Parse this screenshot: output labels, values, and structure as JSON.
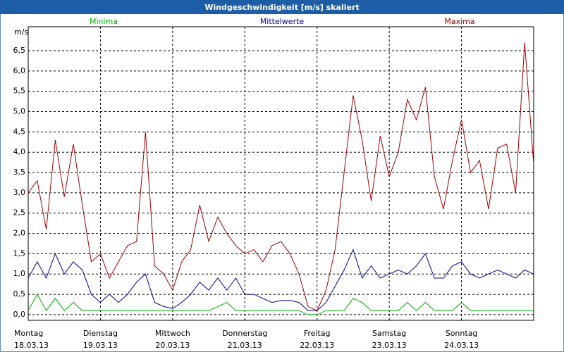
{
  "chart_data": {
    "type": "line",
    "title": "Windgeschwindigkeit [m/s] skaliert",
    "y_label": "m/s",
    "xlim": [
      0,
      7
    ],
    "ylim": [
      -0.14,
      7.09
    ],
    "xticks": [
      {
        "value": 0,
        "label": "Montag",
        "date": "18.03.13"
      },
      {
        "value": 1,
        "label": "Dienstag",
        "date": "19.03.13"
      },
      {
        "value": 2,
        "label": "Mittwoch",
        "date": "20.03.13"
      },
      {
        "value": 3,
        "label": "Donnerstag",
        "date": "21.03.13"
      },
      {
        "value": 4,
        "label": "Freitag",
        "date": "22.03.13"
      },
      {
        "value": 5,
        "label": "Samstag",
        "date": "23.03.13"
      },
      {
        "value": 6,
        "label": "Sonntag",
        "date": "24.03.13"
      }
    ],
    "yticks": [
      {
        "value": 0,
        "label": "0,0"
      },
      {
        "value": 0.5,
        "label": "0,5"
      },
      {
        "value": 1,
        "label": "1,0"
      },
      {
        "value": 1.5,
        "label": "1,5"
      },
      {
        "value": 2,
        "label": "2,0"
      },
      {
        "value": 2.5,
        "label": "2,5"
      },
      {
        "value": 3,
        "label": "3,0"
      },
      {
        "value": 3.5,
        "label": "3,5"
      },
      {
        "value": 4,
        "label": "4,0"
      },
      {
        "value": 4.5,
        "label": "4,5"
      },
      {
        "value": 5,
        "label": "5,0"
      },
      {
        "value": 5.5,
        "label": "5,5"
      },
      {
        "value": 6,
        "label": "6,0"
      },
      {
        "value": 6.5,
        "label": "6,5"
      }
    ],
    "grid": true,
    "x": [
      0,
      0.125,
      0.25,
      0.375,
      0.5,
      0.625,
      0.75,
      0.875,
      1,
      1.125,
      1.25,
      1.375,
      1.5,
      1.625,
      1.75,
      1.875,
      2,
      2.125,
      2.25,
      2.375,
      2.5,
      2.625,
      2.75,
      2.875,
      3,
      3.125,
      3.25,
      3.375,
      3.5,
      3.625,
      3.75,
      3.875,
      4,
      4.125,
      4.25,
      4.375,
      4.5,
      4.625,
      4.75,
      4.875,
      5,
      5.125,
      5.25,
      5.375,
      5.5,
      5.625,
      5.75,
      5.875,
      6,
      6.125,
      6.25,
      6.375,
      6.5,
      6.625,
      6.75,
      6.875,
      7
    ],
    "series": [
      {
        "name": "Minima",
        "color": "#00b000",
        "values": [
          0.1,
          0.5,
          0.1,
          0.4,
          0.1,
          0.3,
          0.1,
          0.1,
          0.1,
          0.1,
          0.1,
          0.1,
          0.1,
          0.1,
          0.1,
          0.1,
          0.1,
          0.1,
          0.1,
          0.1,
          0.1,
          0.2,
          0.3,
          0.1,
          0.1,
          0.1,
          0.1,
          0.1,
          0.1,
          0.1,
          0.1,
          0.0,
          0.0,
          0.1,
          0.1,
          0.1,
          0.4,
          0.3,
          0.1,
          0.1,
          0.1,
          0.1,
          0.3,
          0.1,
          0.3,
          0.1,
          0.1,
          0.1,
          0.3,
          0.1,
          0.1,
          0.1,
          0.1,
          0.1,
          0.1,
          0.1,
          0.1
        ]
      },
      {
        "name": "Mittelwerte",
        "color": "#00009c",
        "values": [
          0.9,
          1.3,
          0.9,
          1.5,
          1.0,
          1.3,
          1.1,
          0.5,
          0.3,
          0.5,
          0.3,
          0.5,
          0.8,
          1.0,
          0.3,
          0.2,
          0.15,
          0.3,
          0.5,
          0.8,
          0.6,
          0.9,
          0.6,
          0.9,
          0.5,
          0.5,
          0.4,
          0.3,
          0.35,
          0.35,
          0.3,
          0.1,
          0.1,
          0.3,
          0.7,
          1.1,
          1.6,
          0.9,
          1.2,
          0.9,
          1.0,
          1.1,
          1.0,
          1.2,
          1.5,
          0.9,
          0.9,
          1.2,
          1.3,
          1.0,
          0.9,
          1.0,
          1.1,
          1.0,
          0.9,
          1.1,
          1.0
        ]
      },
      {
        "name": "Maxima",
        "color": "#a00000",
        "values": [
          3.0,
          3.3,
          2.1,
          4.3,
          2.9,
          4.2,
          2.7,
          1.3,
          1.5,
          0.9,
          1.3,
          1.7,
          1.8,
          4.5,
          1.2,
          1.0,
          0.6,
          1.3,
          1.6,
          2.7,
          1.8,
          2.4,
          2.0,
          1.7,
          1.5,
          1.6,
          1.3,
          1.7,
          1.8,
          1.5,
          1.0,
          0.2,
          0.1,
          0.6,
          1.6,
          3.5,
          5.4,
          4.3,
          2.8,
          4.4,
          3.4,
          4.0,
          5.3,
          4.8,
          5.6,
          3.4,
          2.6,
          3.8,
          4.8,
          3.5,
          3.8,
          2.6,
          4.1,
          4.2,
          3.0,
          6.7,
          3.7
        ]
      }
    ]
  }
}
